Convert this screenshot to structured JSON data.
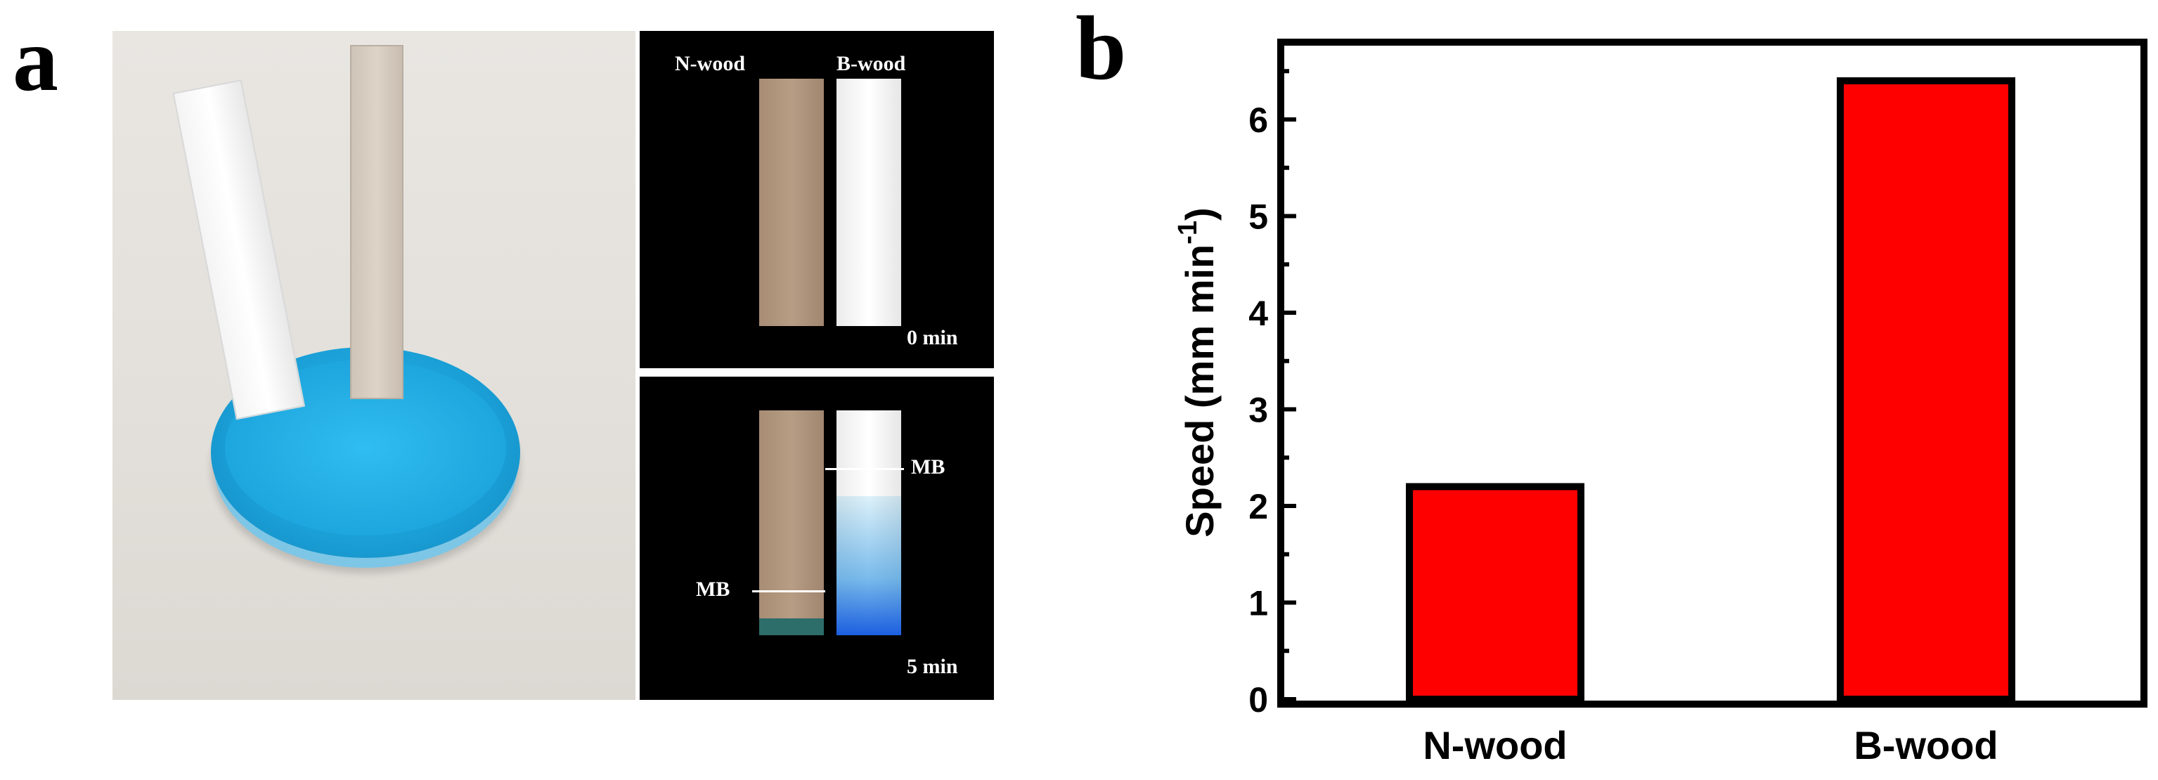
{
  "panels": {
    "a_label": "a",
    "b_label": "b"
  },
  "photo_insets": {
    "top": {
      "left_label": "N-wood",
      "right_label": "B-wood",
      "time": "0 min"
    },
    "bottom": {
      "left_marker": "MB",
      "right_marker": "MB",
      "time": "5 min"
    }
  },
  "colors": {
    "bar_fill": "#ff0000",
    "bar_stroke": "#000000",
    "dye_blue": "#1ea6de"
  },
  "chart_data": {
    "type": "bar",
    "categories": [
      "N-wood",
      "B-wood"
    ],
    "values": [
      2.2,
      6.4
    ],
    "title": "",
    "xlabel": "",
    "ylabel": "Speed (mm min",
    "ylabel_superscript": "-1",
    "ylabel_suffix": ")",
    "ylim": [
      0,
      7
    ],
    "yticks": [
      0,
      1,
      2,
      3,
      4,
      5,
      6
    ],
    "grid": false,
    "legend": "none"
  }
}
